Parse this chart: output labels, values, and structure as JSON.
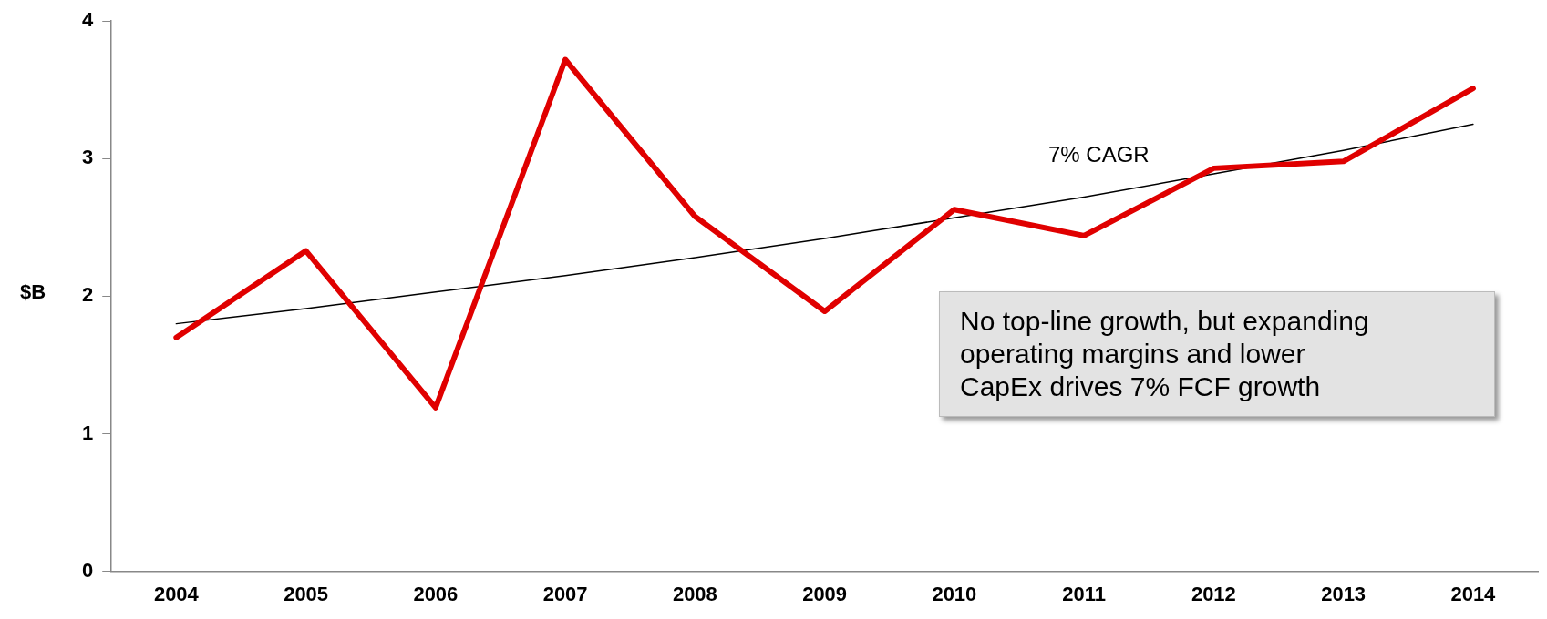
{
  "chart_data": {
    "type": "line",
    "ylabel": "$B",
    "categories": [
      "2004",
      "2005",
      "2006",
      "2007",
      "2008",
      "2009",
      "2010",
      "2011",
      "2012",
      "2013",
      "2014"
    ],
    "series": [
      {
        "color": "#e00000",
        "values": [
          1.7,
          2.33,
          1.19,
          3.72,
          2.58,
          1.89,
          2.63,
          2.44,
          2.93,
          2.98,
          3.51
        ]
      },
      {
        "type": "line",
        "color": "#000000",
        "values": [
          1.8,
          1.91,
          2.03,
          2.15,
          2.28,
          2.42,
          2.57,
          2.72,
          2.89,
          3.06,
          3.25
        ]
      }
    ],
    "ylim": [
      0,
      4
    ],
    "yticks": [
      0,
      1,
      2,
      3,
      4
    ],
    "grid": false,
    "legend": false,
    "marker": "none",
    "line_style": "solid",
    "annotations": [
      "7% CAGR",
      "No top-line growth, but expanding operating margins and lower CapEx drives 7% FCF growth"
    ]
  }
}
